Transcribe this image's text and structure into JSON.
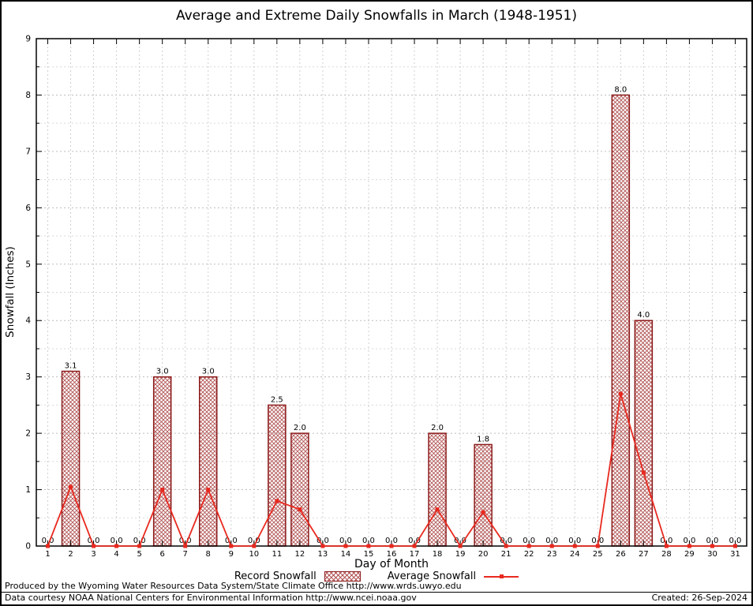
{
  "page": {
    "footer_line1": "Produced by the Wyoming Water Resources Data System/State Climate Office http://www.wrds.uwyo.edu",
    "footer_line2": "Data courtesy NOAA National Centers for Environmental Information http://www.ncei.noaa.gov",
    "created_label": "Created: 26-Sep-2024"
  },
  "chart_data": {
    "type": "bar",
    "title": "Average and Extreme Daily Snowfalls in March (1948-1951)",
    "xlabel": "Day of Month",
    "ylabel": "Snowfall (Inches)",
    "ylim": [
      0,
      9
    ],
    "y_major_step": 1,
    "y_minor_step": 0.5,
    "grid": true,
    "legend_position": "bottom-center",
    "categories": [
      1,
      2,
      3,
      4,
      5,
      6,
      7,
      8,
      9,
      10,
      11,
      12,
      13,
      14,
      15,
      16,
      17,
      18,
      19,
      20,
      21,
      22,
      23,
      24,
      25,
      26,
      27,
      28,
      29,
      30,
      31
    ],
    "series": [
      {
        "name": "Record Snowfall",
        "type": "bar",
        "values": [
          0,
          3.1,
          0,
          0,
          0,
          3.0,
          0,
          3.0,
          0,
          0,
          2.5,
          2.0,
          0,
          0,
          0,
          0,
          0,
          2.0,
          0,
          1.8,
          0,
          0,
          0,
          0,
          0,
          8.0,
          4.0,
          0,
          0,
          0,
          0
        ]
      },
      {
        "name": "Average Snowfall",
        "type": "line",
        "values": [
          0,
          1.05,
          0,
          0,
          0,
          1.0,
          0,
          1.0,
          0,
          0,
          0.8,
          0.65,
          0,
          0,
          0,
          0,
          0,
          0.65,
          0,
          0.6,
          0,
          0,
          0,
          0,
          0,
          2.7,
          1.3,
          0,
          0,
          0,
          0
        ]
      }
    ],
    "colors": {
      "bar_stroke": "#8b1a1a",
      "bar_hatch": "#b25454",
      "line": "#e8291f",
      "grid_major": "#bdbdbd",
      "grid_minor": "#d9d9d9",
      "axis": "#000000"
    }
  }
}
